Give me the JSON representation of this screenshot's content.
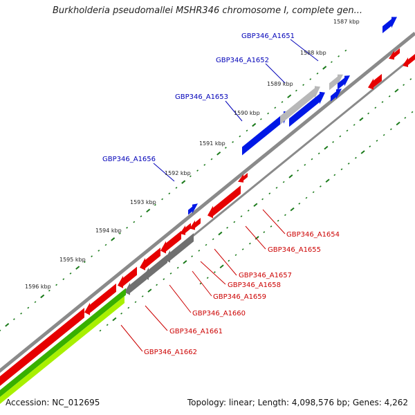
{
  "title": "Burkholderia pseudomallei MSHR346 chromosome I, complete gen...",
  "footer": {
    "accession": "Accession: NC_012695",
    "summary": "Topology: linear; Length: 4,098,576 bp; Genes: 4,262"
  },
  "colors": {
    "backbone": "#8a8a8a",
    "tick": "#1a7a1a",
    "label_forward": "#0000b8",
    "label_reverse": "#cc0000",
    "gene_blue": "#0018e6",
    "gene_red": "#e60000",
    "gene_grey": "#707070",
    "gene_light_grey": "#b8b8b8",
    "gene_green": "#38b000",
    "gene_lime": "#a8f000"
  },
  "scale_labels": [
    "1587 kbp",
    "1588 kbp",
    "1589 kbp",
    "1590 kbp",
    "1591 kbp",
    "1592 kbp",
    "1593 kbp",
    "1594 kbp",
    "1595 kbp",
    "1596 kbp"
  ],
  "gene_labels_forward": [
    "GBP346_A1651",
    "GBP346_A1652",
    "GBP346_A1653",
    "GBP346_A1656"
  ],
  "gene_labels_reverse": [
    "GBP346_A1654",
    "GBP346_A1655",
    "GBP346_A1657",
    "GBP346_A1658",
    "GBP346_A1659",
    "GBP346_A1660",
    "GBP346_A1661",
    "GBP346_A1662"
  ]
}
